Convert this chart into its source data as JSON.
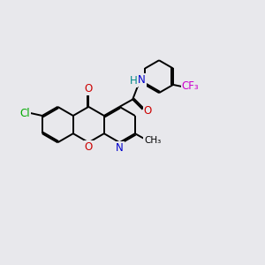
{
  "bg_color": "#e8e8ec",
  "colors": {
    "C": "black",
    "O": "#cc0000",
    "N": "#0000cc",
    "Cl": "#00aa00",
    "F": "#cc00cc",
    "H": "#008888",
    "bond": "black"
  },
  "bond_width": 1.4,
  "font_size": 8.5
}
